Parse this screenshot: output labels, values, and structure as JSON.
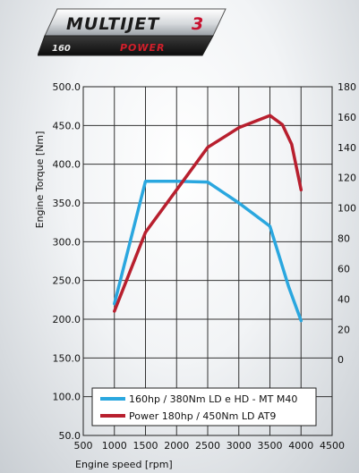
{
  "badge": {
    "line1": "MULTIJET",
    "number": "3",
    "cc": "160",
    "sub": "POWER"
  },
  "chart_data": {
    "type": "line",
    "xlabel": "Engine speed [rpm]",
    "ylabel": "Engine Torque [Nm]",
    "y2label": "",
    "xlim": [
      500,
      4500
    ],
    "ylim": [
      50,
      500
    ],
    "y2lim": [
      -50,
      180
    ],
    "xticks": [
      500,
      1000,
      1500,
      2000,
      2500,
      3000,
      3500,
      4000,
      4500
    ],
    "yticks": [
      50,
      100,
      150,
      200,
      250,
      300,
      350,
      400,
      450,
      500
    ],
    "y2ticks": [
      0,
      20,
      40,
      60,
      80,
      100,
      120,
      140,
      160,
      180
    ],
    "xtick_labels": [
      "500",
      "1000",
      "1500",
      "2000",
      "2500",
      "3000",
      "3500",
      "4000",
      "4500"
    ],
    "ytick_labels": [
      "50.0",
      "100.0",
      "150.0",
      "200.0",
      "250.0",
      "300.0",
      "350.0",
      "400.0",
      "450.0",
      "500.0"
    ],
    "y2tick_labels": [
      "0",
      "20",
      "40",
      "60",
      "80",
      "100",
      "120",
      "140",
      "160",
      "180"
    ],
    "grid": true,
    "legend_position": "bottom",
    "series": [
      {
        "name": "160hp / 380Nm LD e HD - MT M40",
        "axis": "left",
        "color": "#2aa7df",
        "x": [
          1000,
          1500,
          2000,
          2500,
          3000,
          3500,
          3800,
          4000
        ],
        "y": [
          220,
          378,
          378,
          377,
          350,
          320,
          242,
          198
        ]
      },
      {
        "name": "Power 180hp / 450Nm LD AT9",
        "axis": "right",
        "color": "#b81f2e",
        "x": [
          1000,
          1500,
          2000,
          2500,
          3000,
          3500,
          3700,
          3850,
          4000
        ],
        "y": [
          32,
          84,
          112,
          140,
          153,
          161,
          155,
          142,
          112
        ]
      }
    ]
  }
}
